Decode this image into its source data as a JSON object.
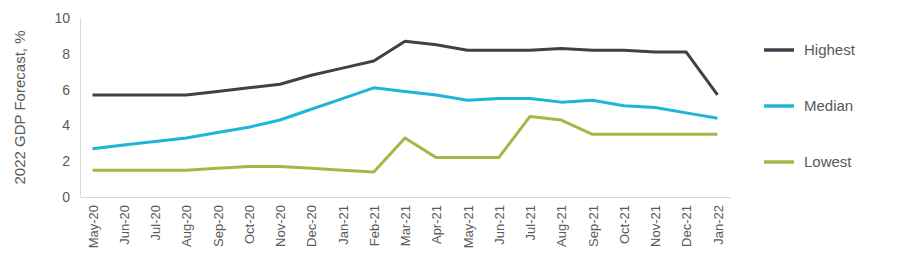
{
  "chart_data": {
    "type": "line",
    "y_label": "2022 GDP Forecast, %",
    "categories": [
      "May-20",
      "Jun-20",
      "Jul-20",
      "Aug-20",
      "Sep-20",
      "Oct-20",
      "Nov-20",
      "Dec-20",
      "Jan-21",
      "Feb-21",
      "Mar-21",
      "Apr-21",
      "May-21",
      "Jun-21",
      "Jul-21",
      "Aug-21",
      "Sep-21",
      "Oct-21",
      "Nov-21",
      "Dec-21",
      "Jan-22"
    ],
    "series": [
      {
        "name": "Highest",
        "color": "#3b434a",
        "values": [
          5.7,
          5.7,
          5.7,
          5.7,
          5.9,
          6.1,
          6.3,
          6.8,
          7.2,
          7.6,
          8.7,
          8.5,
          8.2,
          8.2,
          8.2,
          8.3,
          8.2,
          8.2,
          8.1,
          8.1,
          5.7
        ]
      },
      {
        "name": "Median",
        "color": "#1fb5d8",
        "values": [
          2.7,
          2.9,
          3.1,
          3.3,
          3.6,
          3.9,
          4.3,
          4.9,
          5.5,
          6.1,
          5.9,
          5.7,
          5.4,
          5.5,
          5.5,
          5.3,
          5.4,
          5.1,
          5.0,
          4.7,
          4.4
        ]
      },
      {
        "name": "Lowest",
        "color": "#a9b545",
        "values": [
          1.5,
          1.5,
          1.5,
          1.5,
          1.6,
          1.7,
          1.7,
          1.6,
          1.5,
          1.4,
          3.3,
          2.2,
          2.2,
          2.2,
          4.5,
          4.3,
          3.5,
          3.5,
          3.5,
          3.5,
          3.5
        ]
      }
    ],
    "ylim": [
      0,
      10
    ],
    "yticks": [
      0,
      2,
      4,
      6,
      8,
      10
    ],
    "grid": false,
    "legend": "right"
  }
}
